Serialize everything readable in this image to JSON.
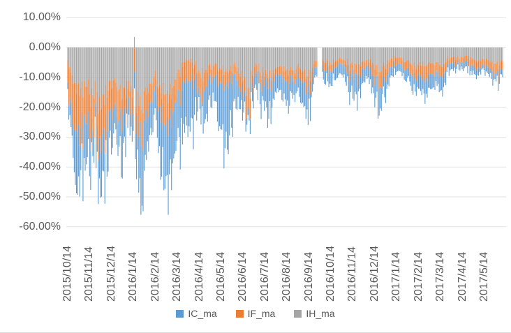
{
  "chart_data": {
    "type": "bar",
    "stacked": true,
    "title": "",
    "y_axis": {
      "tick_labels": [
        "10.00%",
        "0.00%",
        "-10.00%",
        "-20.00%",
        "-30.00%",
        "-40.00%",
        "-50.00%",
        "-60.00%"
      ],
      "tick_values": [
        10,
        0,
        -10,
        -20,
        -30,
        -40,
        -50,
        -60
      ],
      "min": -60,
      "max": 10,
      "unit": "percent",
      "gridlines": true
    },
    "x_axis": {
      "tick_labels": [
        "2015/10/14",
        "2015/11/14",
        "2015/12/14",
        "2016/1/14",
        "2016/2/14",
        "2016/3/14",
        "2016/4/14",
        "2016/5/14",
        "2016/6/14",
        "2016/7/14",
        "2016/8/14",
        "2016/9/14",
        "2016/10/14",
        "2016/11/14",
        "2016/12/14",
        "2017/1/14",
        "2017/2/14",
        "2017/3/14",
        "2017/4/14",
        "2017/5/14"
      ]
    },
    "legend": {
      "position": "bottom",
      "items": [
        {
          "label": "IC_ma",
          "color": "#5B9BD5"
        },
        {
          "label": "IF_ma",
          "color": "#ED7D31"
        },
        {
          "label": "IH_ma",
          "color": "#A5A5A5"
        }
      ]
    },
    "bars": {
      "count": 399,
      "stack_order_from_axis": [
        "IH_ma",
        "IF_ma",
        "IC_ma"
      ],
      "missing_indices": [
        229,
        230,
        231,
        232
      ],
      "positive_outlier": {
        "index": 61,
        "series": "IH_ma",
        "value_pct": 3.5
      },
      "sampled_keypoints": {
        "index": [
          0,
          3,
          6,
          9,
          13,
          16,
          19,
          21,
          25,
          29,
          34,
          37,
          41,
          45,
          50,
          55,
          60,
          63,
          66,
          72,
          79,
          84,
          90,
          95,
          99,
          105,
          111,
          116,
          120,
          126,
          133,
          138,
          144,
          150,
          154,
          159,
          164,
          169,
          173,
          179,
          183,
          188,
          192,
          196,
          201,
          207,
          213,
          219,
          224,
          228,
          234,
          238,
          243,
          248,
          253,
          259,
          265,
          271,
          275,
          280,
          285,
          290,
          296,
          303,
          308,
          313,
          318,
          324,
          330,
          335,
          342,
          348,
          353,
          359,
          365,
          370,
          374,
          380,
          385,
          389,
          394,
          398
        ],
        "IC_ma": [
          -3,
          -8,
          -13,
          -20,
          -11,
          -17,
          -8,
          -11,
          -5,
          -14,
          -13,
          -10,
          -8,
          -8,
          -12,
          -6,
          -6,
          -10,
          -19,
          -14,
          -7,
          -14,
          -23,
          -18,
          -15,
          -15,
          -16,
          -12,
          -4,
          -10,
          -7,
          -14,
          -24,
          -13,
          -8,
          -6,
          -3,
          -4,
          -5,
          -8,
          -11,
          -7,
          -5,
          -6,
          -7,
          -5,
          -7,
          -8.5,
          -4,
          -3,
          -3,
          -4.5,
          -4,
          -3.5,
          -4,
          -6,
          -7,
          -4.5,
          -4,
          -6,
          -8,
          -6,
          -3,
          -2,
          -3,
          -4,
          -4.5,
          -6,
          -5,
          -4.5,
          -5,
          -2.5,
          -2,
          -2,
          -2,
          -2,
          -2.5,
          -1.5,
          -2,
          -2.5,
          -2,
          -1.5
        ],
        "IF_ma": [
          -9,
          -12,
          -14,
          -17,
          -12,
          -14,
          -10,
          -13,
          -9,
          -16,
          -12,
          -12,
          -10,
          -9,
          -10,
          -6,
          -8,
          -9,
          -10,
          -9,
          -5,
          -8,
          -10,
          -9,
          -8,
          -7,
          -6,
          -5,
          -7,
          -6,
          -4,
          -5,
          -5,
          -4,
          -4,
          -6,
          -7,
          -4,
          -3,
          -3,
          -3,
          -3,
          -2,
          -3,
          -4,
          -3,
          -4,
          -4,
          -3,
          -2,
          -2,
          -2.5,
          -2,
          -2,
          -2,
          -3,
          -4,
          -2.5,
          -2,
          -4,
          -5,
          -4,
          -3,
          -2,
          -2.5,
          -3,
          -3.5,
          -4.5,
          -4,
          -3.5,
          -4,
          -2,
          -2,
          -2,
          -2,
          -2,
          -2.5,
          -2,
          -2.5,
          -3.5,
          -3,
          -2.5
        ],
        "IH_ma": [
          -5,
          -8,
          -11,
          -15,
          -13,
          -14,
          -12,
          -17,
          -15,
          -20,
          -16,
          -13,
          -12,
          -13,
          -15,
          -12,
          -14,
          -16,
          -18,
          -15,
          -10,
          -13,
          -17,
          -13,
          -11,
          -5,
          -4,
          -5,
          -9,
          -7,
          -6,
          -7,
          -8,
          -7,
          -6,
          -10,
          -15,
          -9,
          -6,
          -9,
          -10,
          -8,
          -6,
          -6,
          -8,
          -7,
          -8,
          -9,
          -6,
          -4,
          -4,
          -5,
          -5,
          -4,
          -4.5,
          -6,
          -7,
          -5,
          -4,
          -6,
          -8,
          -6,
          -4,
          -3,
          -4,
          -5,
          -5.5,
          -6,
          -5.5,
          -5,
          -6,
          -3.5,
          -3,
          -3.5,
          -3,
          -3,
          -4.5,
          -3.5,
          -4,
          -6,
          -5,
          -4
        ]
      }
    }
  },
  "colors": {
    "axis_text": "#595959",
    "gridline": "#D9D9D9",
    "background": "#FFFFFF"
  }
}
